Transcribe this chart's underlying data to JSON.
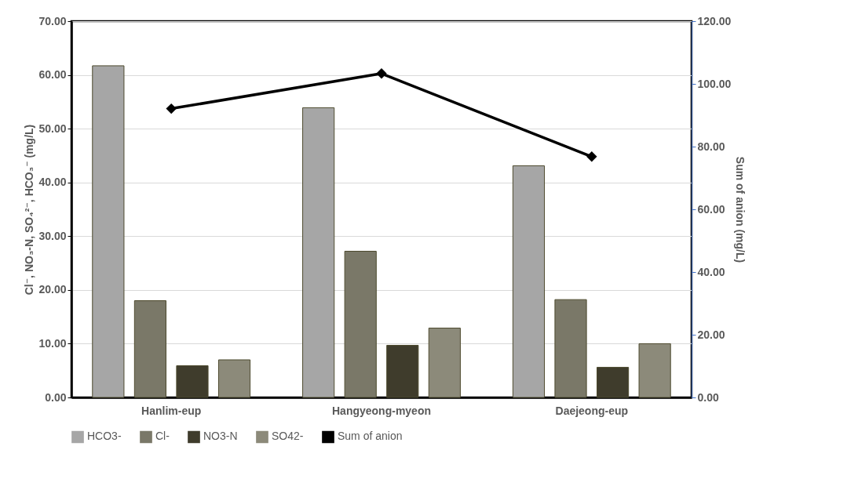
{
  "chart_data": {
    "type": "bar",
    "categories": [
      "Hanlim-eup",
      "Hangyeong-myeon",
      "Daejeong-eup"
    ],
    "ylabel": "Cl⁻, NO₃-N, SO₄²⁻, HCO₃⁻ (mg/L)",
    "y2label": "Sum of anion (mg/L)",
    "series": [
      {
        "name": "HCO3-",
        "color": "#a6a6a6",
        "values": [
          61.7,
          53.9,
          43.1
        ]
      },
      {
        "name": "Cl-",
        "color": "#7a7868",
        "values": [
          18.0,
          27.2,
          18.2
        ]
      },
      {
        "name": "NO3-N",
        "color": "#3f3c2c",
        "values": [
          5.9,
          9.7,
          5.6
        ]
      },
      {
        "name": "SO42-",
        "color": "#8c8a7a",
        "values": [
          7.0,
          12.9,
          10.0
        ]
      },
      {
        "name": "Sum of anion",
        "type": "line",
        "axis": "y2",
        "color": "#000000",
        "marker": "diamond",
        "values": [
          92.1,
          103.3,
          76.8
        ]
      }
    ],
    "ylim": [
      0,
      70
    ],
    "yticks": [
      {
        "value": 0,
        "label": "0.00"
      },
      {
        "value": 10,
        "label": "10.00"
      },
      {
        "value": 20,
        "label": "20.00"
      },
      {
        "value": 30,
        "label": "30.00"
      },
      {
        "value": 40,
        "label": "40.00"
      },
      {
        "value": 50,
        "label": "50.00"
      },
      {
        "value": 60,
        "label": "60.00"
      },
      {
        "value": 70,
        "label": "70.00"
      }
    ],
    "y2lim": [
      0,
      120
    ],
    "y2ticks": [
      {
        "value": 0,
        "label": "0.00"
      },
      {
        "value": 20,
        "label": "20.00"
      },
      {
        "value": 40,
        "label": "40.00"
      },
      {
        "value": 60,
        "label": "60.00"
      },
      {
        "value": 80,
        "label": "80.00"
      },
      {
        "value": 100,
        "label": "100.00"
      },
      {
        "value": 120,
        "label": "120.00"
      }
    ],
    "grid": "y",
    "legend": "bottom"
  }
}
